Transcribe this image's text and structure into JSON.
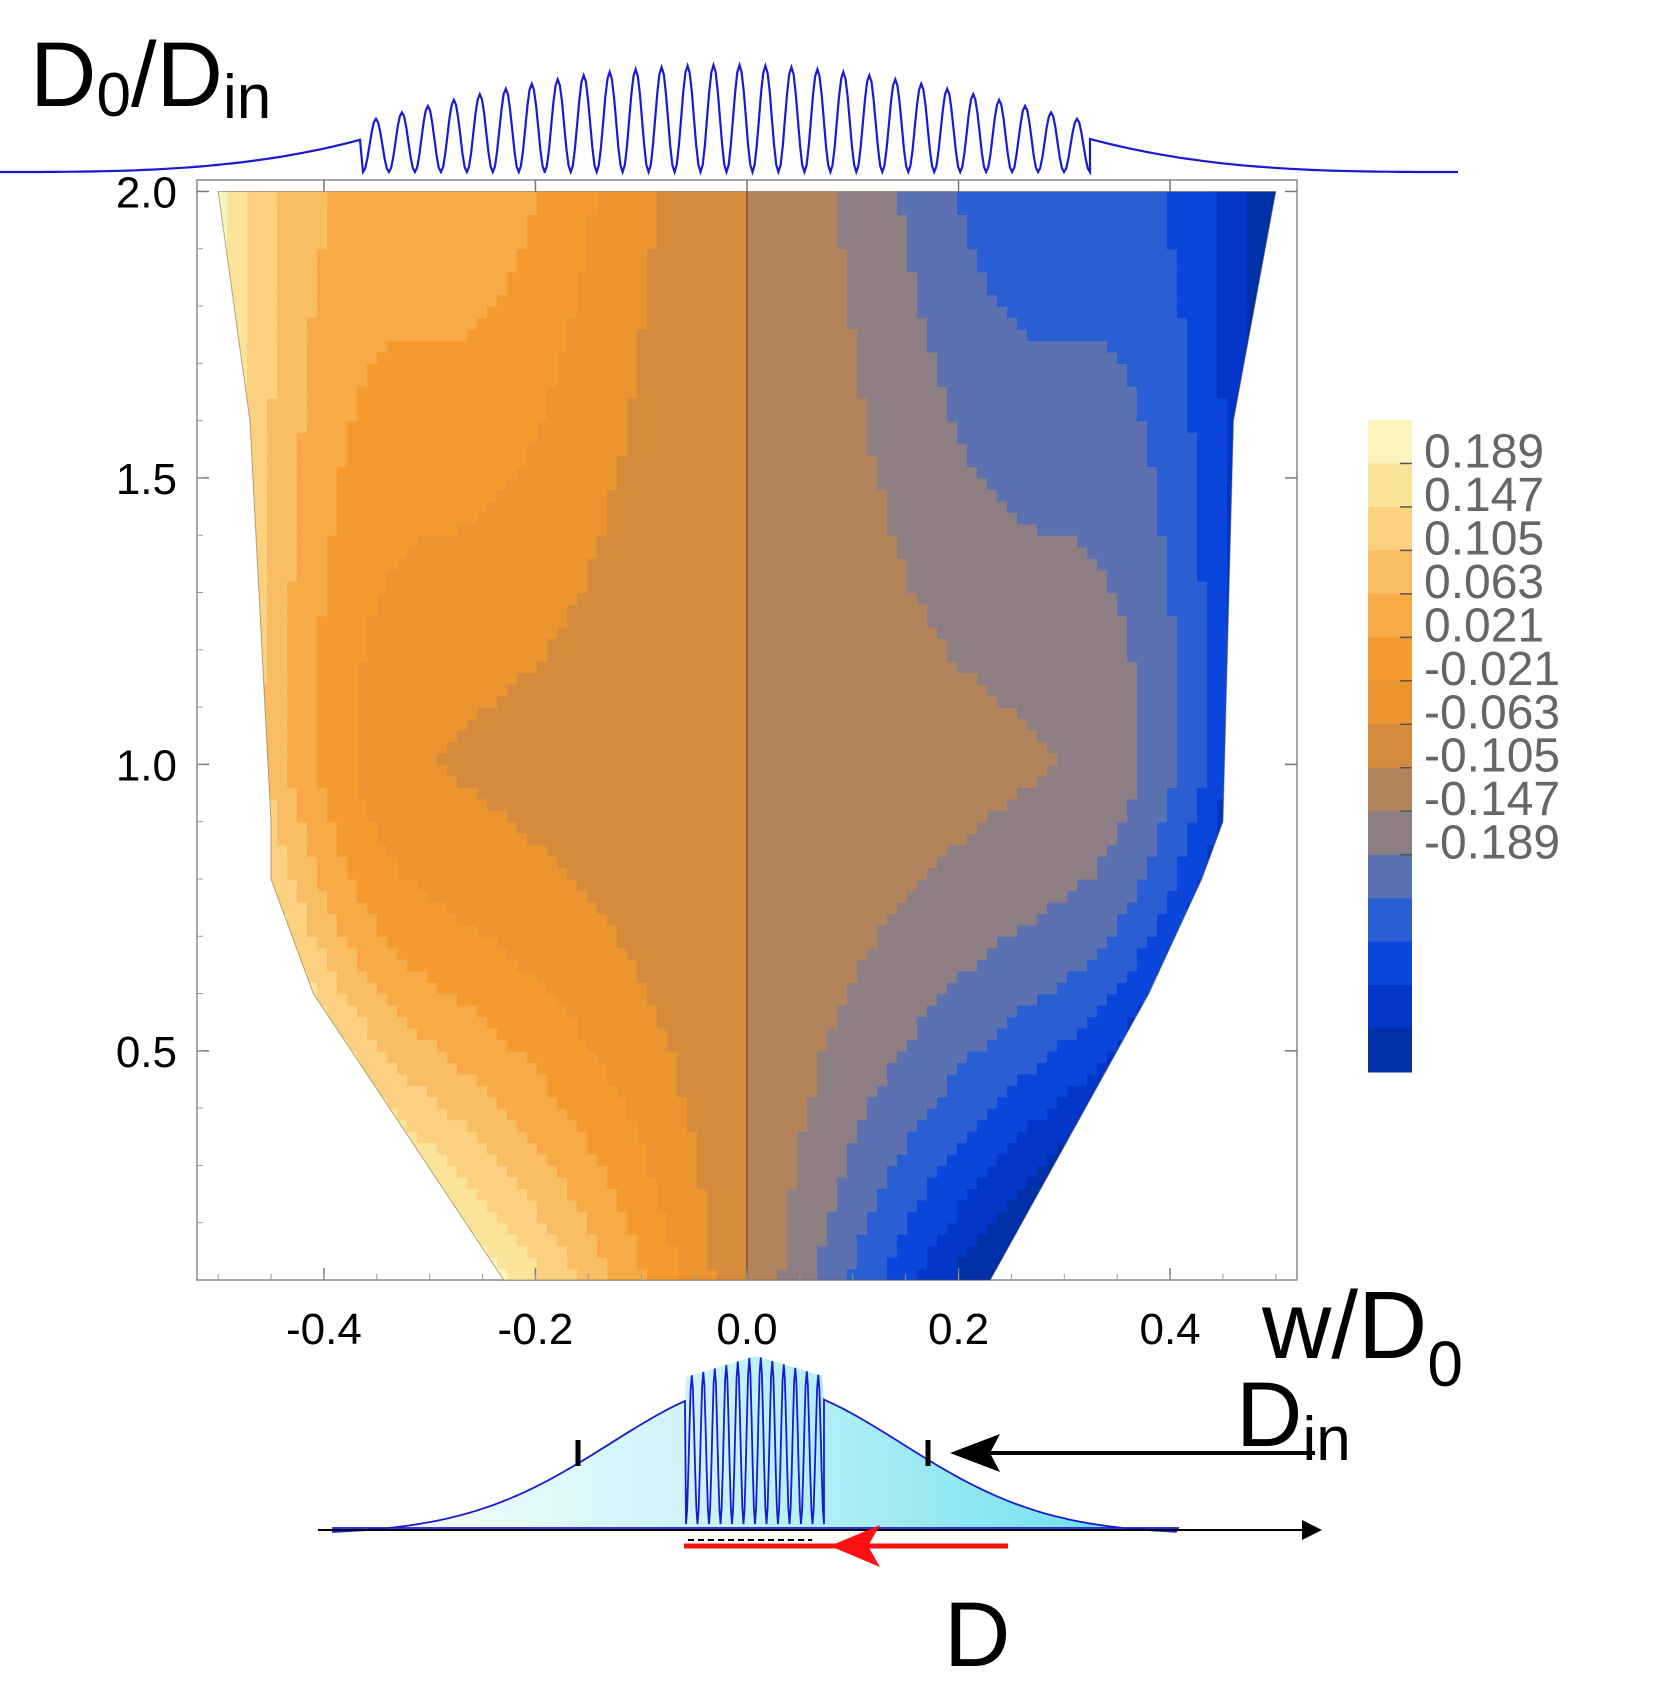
{
  "chart_data": {
    "type": "contour",
    "title": "",
    "xlabel_main": "w/D",
    "xlabel_sub": "0",
    "ylabel_main": "D",
    "ylabel_sub0": "0",
    "ylabel_slash": "/D",
    "ylabel_sub1": "in",
    "xlim": [
      -0.52,
      0.52
    ],
    "ylim": [
      0.1,
      2.02
    ],
    "x_ticks": [
      {
        "value": -0.4,
        "label": "-0.4"
      },
      {
        "value": -0.2,
        "label": "-0.2"
      },
      {
        "value": 0.0,
        "label": "0.0"
      },
      {
        "value": 0.2,
        "label": "0.2"
      },
      {
        "value": 0.4,
        "label": "0.4"
      }
    ],
    "y_ticks": [
      {
        "value": 0.5,
        "label": "0.5"
      },
      {
        "value": 1.0,
        "label": "1.0"
      },
      {
        "value": 1.5,
        "label": "1.5"
      },
      {
        "value": 2.0,
        "label": "2.0"
      }
    ],
    "colorbar": {
      "levels": [
        "0.189",
        "0.147",
        "0.105",
        "0.063",
        "0.021",
        "-0.021",
        "-0.063",
        "-0.105",
        "-0.147",
        "-0.189"
      ],
      "colors": [
        "#fbf5bd",
        "#fbe39a",
        "#fbd07f",
        "#f9bd63",
        "#f8aa46",
        "#f59a2e",
        "#ec9530",
        "#d48c3c",
        "#b3845c",
        "#8d7e84",
        "#5c71b2",
        "#2a5ed3",
        "#0a45dc",
        "#0236c8",
        "#0030a8"
      ]
    },
    "domain_boundary": {
      "left": [
        [
          -0.23,
          0.1
        ],
        [
          -0.41,
          0.6
        ],
        [
          -0.45,
          0.8
        ],
        [
          -0.45,
          0.9
        ],
        [
          -0.47,
          1.6
        ],
        [
          -0.5,
          2.0
        ]
      ],
      "right": [
        [
          0.23,
          0.1
        ],
        [
          0.38,
          0.6
        ],
        [
          0.43,
          0.8
        ],
        [
          0.45,
          0.9
        ],
        [
          0.46,
          1.6
        ],
        [
          0.5,
          2.0
        ]
      ]
    },
    "top_profile": {
      "label": "D0/Din",
      "peaks": 28
    },
    "bottom_profile": {
      "peaks": 12,
      "label_din": "D",
      "label_din_sub": "in",
      "label_d": "D"
    }
  }
}
